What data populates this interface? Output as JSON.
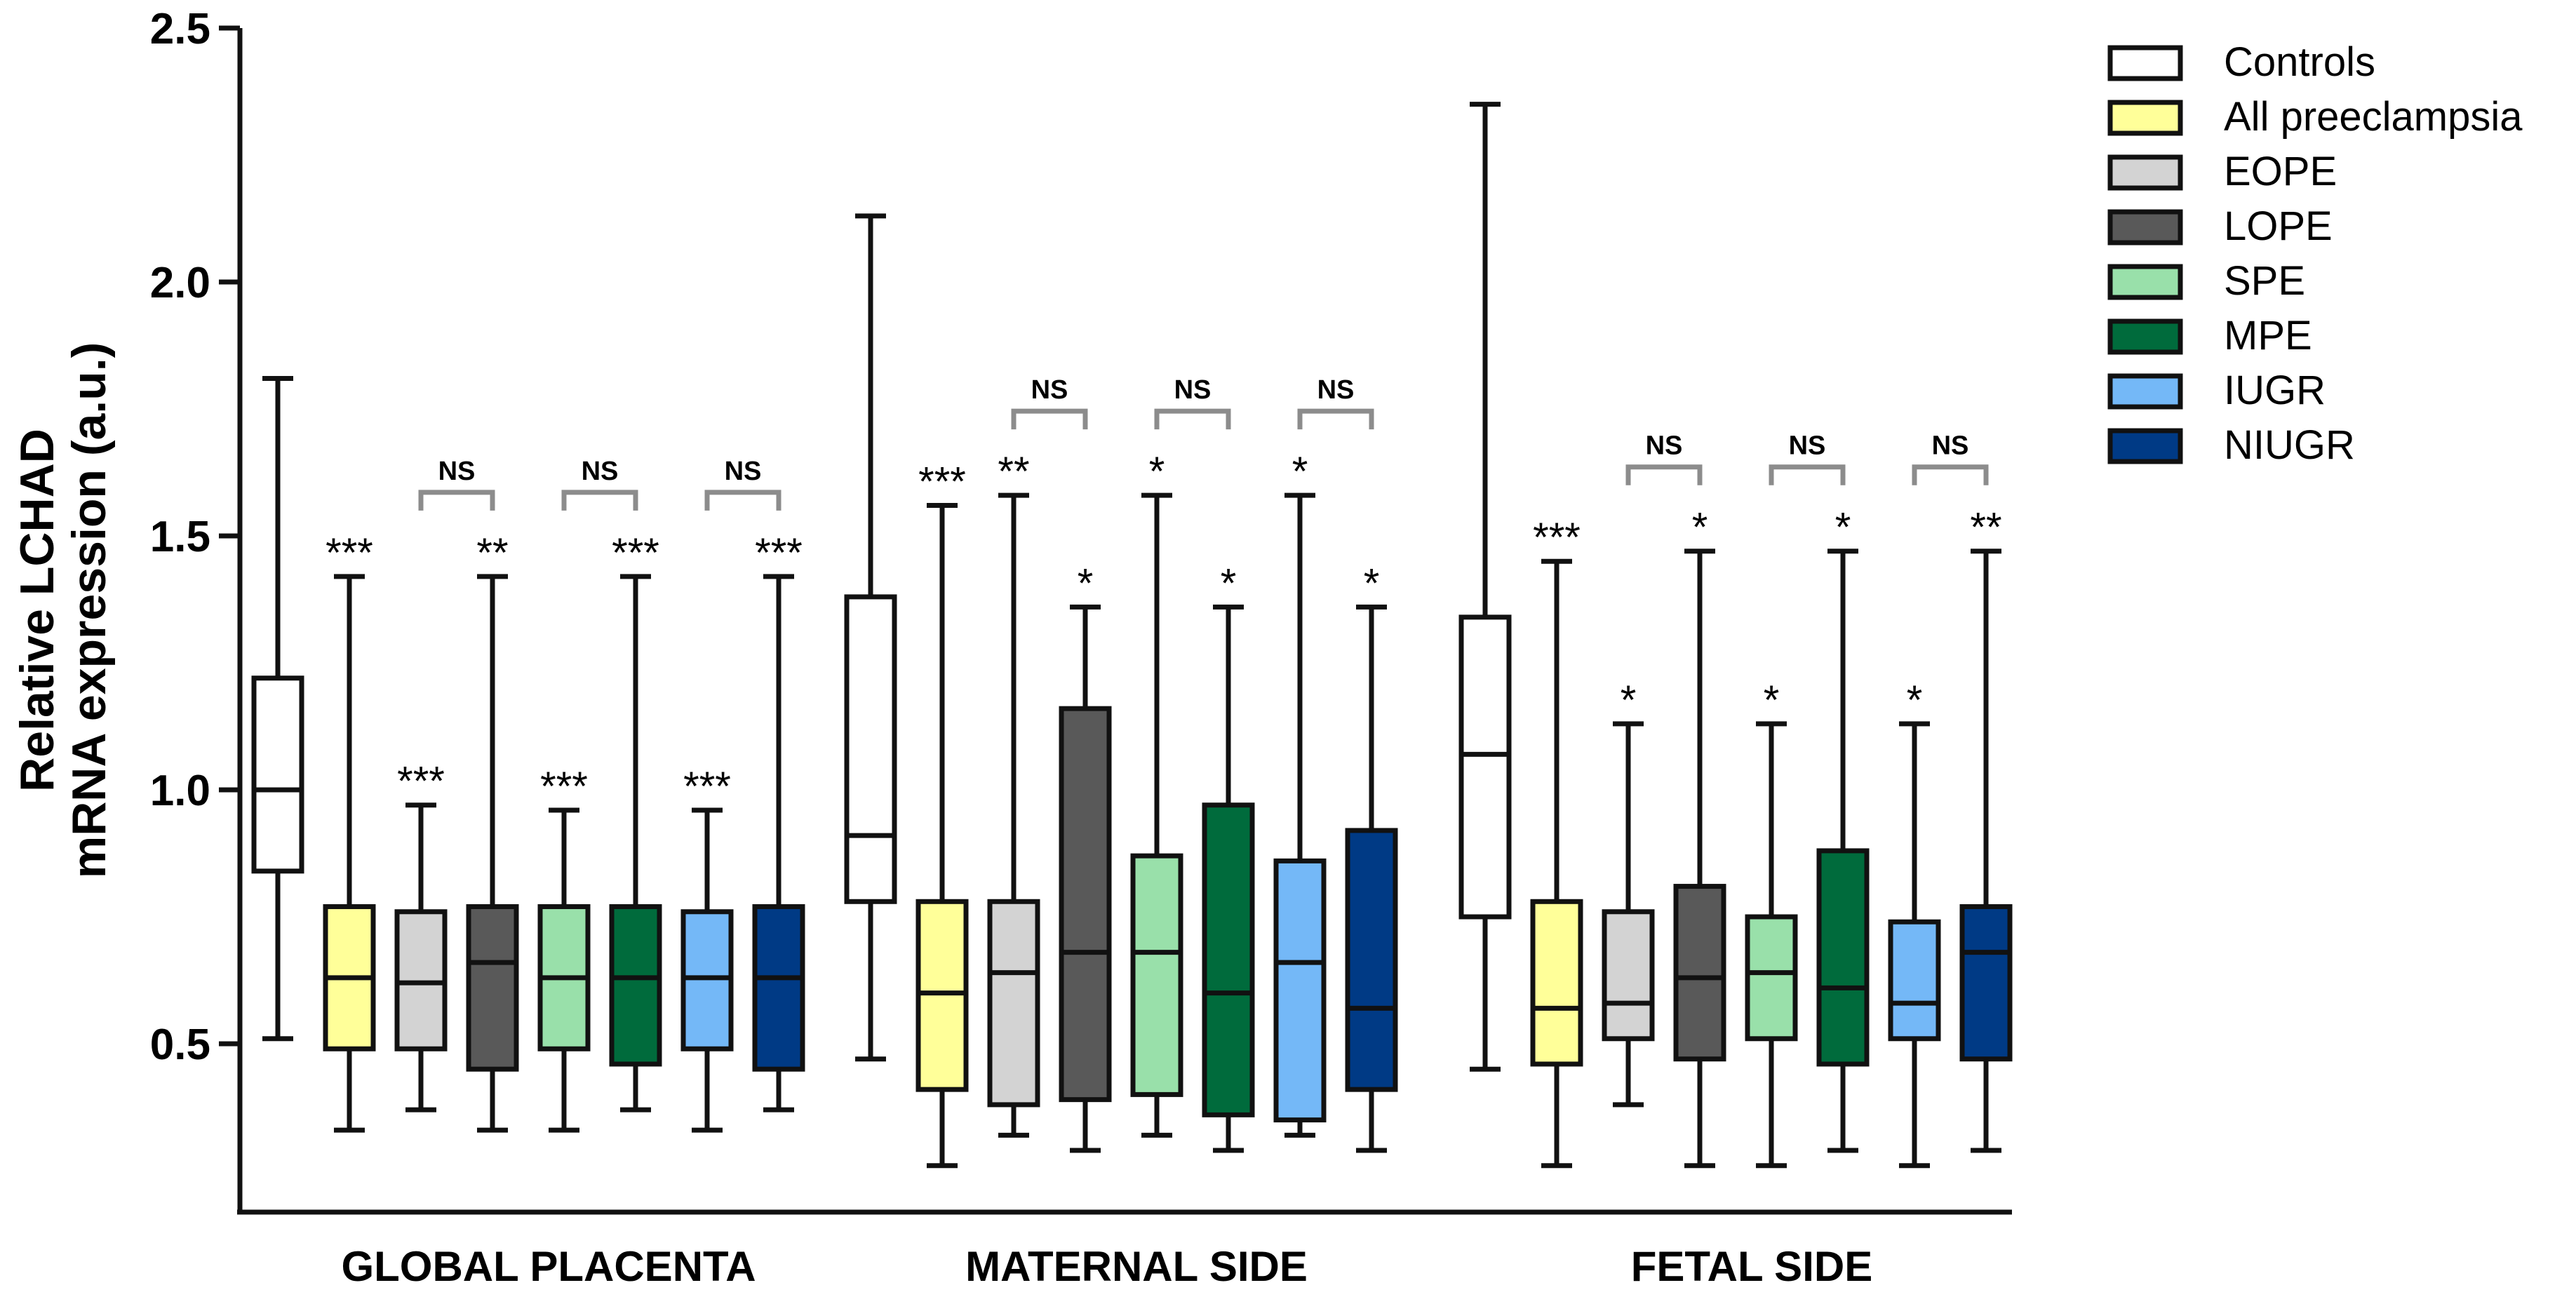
{
  "chart_data": {
    "type": "boxplot",
    "ylabel_line1": "Relative LCHAD",
    "ylabel_line2": "mRNA expression (a.u.)",
    "ylim": [
      0.25,
      2.5
    ],
    "yticks": [
      "0.5",
      "1.0",
      "1.5",
      "2.0",
      "2.5"
    ],
    "ytick_values": [
      0.5,
      1.0,
      1.5,
      2.0,
      2.5
    ],
    "groups": [
      "GLOBAL PLACENTA",
      "MATERNAL SIDE",
      "FETAL SIDE"
    ],
    "series": [
      {
        "name": "Controls",
        "color": "#ffffff"
      },
      {
        "name": "All preeclampsia",
        "color": "#ffff99"
      },
      {
        "name": "EOPE",
        "color": "#d3d3d3"
      },
      {
        "name": "LOPE",
        "color": "#595959"
      },
      {
        "name": "SPE",
        "color": "#99e0aa"
      },
      {
        "name": "MPE",
        "color": "#006b3c"
      },
      {
        "name": "IUGR",
        "color": "#74b8f7"
      },
      {
        "name": "NIUGR",
        "color": "#003a85"
      }
    ],
    "boxes": [
      [
        {
          "min": 0.51,
          "q1": 0.84,
          "median": 1.0,
          "q3": 1.22,
          "max": 1.81,
          "sig": ""
        },
        {
          "min": 0.33,
          "q1": 0.49,
          "median": 0.63,
          "q3": 0.77,
          "max": 1.42,
          "sig": "***"
        },
        {
          "min": 0.37,
          "q1": 0.49,
          "median": 0.62,
          "q3": 0.76,
          "max": 0.97,
          "sig": "***"
        },
        {
          "min": 0.33,
          "q1": 0.45,
          "median": 0.66,
          "q3": 0.77,
          "max": 1.42,
          "sig": "**"
        },
        {
          "min": 0.33,
          "q1": 0.49,
          "median": 0.63,
          "q3": 0.77,
          "max": 0.96,
          "sig": "***"
        },
        {
          "min": 0.37,
          "q1": 0.46,
          "median": 0.63,
          "q3": 0.77,
          "max": 1.42,
          "sig": "***"
        },
        {
          "min": 0.33,
          "q1": 0.49,
          "median": 0.63,
          "q3": 0.76,
          "max": 0.96,
          "sig": "***"
        },
        {
          "min": 0.37,
          "q1": 0.45,
          "median": 0.63,
          "q3": 0.77,
          "max": 1.42,
          "sig": "***"
        }
      ],
      [
        {
          "min": 0.47,
          "q1": 0.78,
          "median": 0.91,
          "q3": 1.38,
          "max": 2.13,
          "sig": ""
        },
        {
          "min": 0.26,
          "q1": 0.41,
          "median": 0.6,
          "q3": 0.78,
          "max": 1.56,
          "sig": "***"
        },
        {
          "min": 0.32,
          "q1": 0.38,
          "median": 0.64,
          "q3": 0.78,
          "max": 1.58,
          "sig": "**"
        },
        {
          "min": 0.29,
          "q1": 0.39,
          "median": 0.68,
          "q3": 1.16,
          "max": 1.36,
          "sig": "*"
        },
        {
          "min": 0.32,
          "q1": 0.4,
          "median": 0.68,
          "q3": 0.87,
          "max": 1.58,
          "sig": "*"
        },
        {
          "min": 0.29,
          "q1": 0.36,
          "median": 0.6,
          "q3": 0.97,
          "max": 1.36,
          "sig": "*"
        },
        {
          "min": 0.32,
          "q1": 0.35,
          "median": 0.66,
          "q3": 0.86,
          "max": 1.58,
          "sig": "*"
        },
        {
          "min": 0.29,
          "q1": 0.41,
          "median": 0.57,
          "q3": 0.92,
          "max": 1.36,
          "sig": "*"
        }
      ],
      [
        {
          "min": 0.45,
          "q1": 0.75,
          "median": 1.07,
          "q3": 1.34,
          "max": 2.35,
          "sig": ""
        },
        {
          "min": 0.26,
          "q1": 0.46,
          "median": 0.57,
          "q3": 0.78,
          "max": 1.45,
          "sig": "***"
        },
        {
          "min": 0.38,
          "q1": 0.51,
          "median": 0.58,
          "q3": 0.76,
          "max": 1.13,
          "sig": "*"
        },
        {
          "min": 0.26,
          "q1": 0.47,
          "median": 0.63,
          "q3": 0.81,
          "max": 1.47,
          "sig": "*"
        },
        {
          "min": 0.26,
          "q1": 0.51,
          "median": 0.64,
          "q3": 0.75,
          "max": 1.13,
          "sig": "*"
        },
        {
          "min": 0.29,
          "q1": 0.46,
          "median": 0.61,
          "q3": 0.88,
          "max": 1.47,
          "sig": "*"
        },
        {
          "min": 0.26,
          "q1": 0.51,
          "median": 0.58,
          "q3": 0.74,
          "max": 1.13,
          "sig": "*"
        },
        {
          "min": 0.29,
          "q1": 0.47,
          "median": 0.68,
          "q3": 0.77,
          "max": 1.47,
          "sig": "**"
        }
      ]
    ],
    "brackets": [
      [
        {
          "from": 2,
          "to": 3,
          "label": "NS"
        },
        {
          "from": 4,
          "to": 5,
          "label": "NS"
        },
        {
          "from": 6,
          "to": 7,
          "label": "NS"
        }
      ],
      [
        {
          "from": 2,
          "to": 3,
          "label": "NS"
        },
        {
          "from": 4,
          "to": 5,
          "label": "NS"
        },
        {
          "from": 6,
          "to": 7,
          "label": "NS"
        }
      ],
      [
        {
          "from": 2,
          "to": 3,
          "label": "NS"
        },
        {
          "from": 4,
          "to": 5,
          "label": "NS"
        },
        {
          "from": 6,
          "to": 7,
          "label": "NS"
        }
      ]
    ]
  }
}
